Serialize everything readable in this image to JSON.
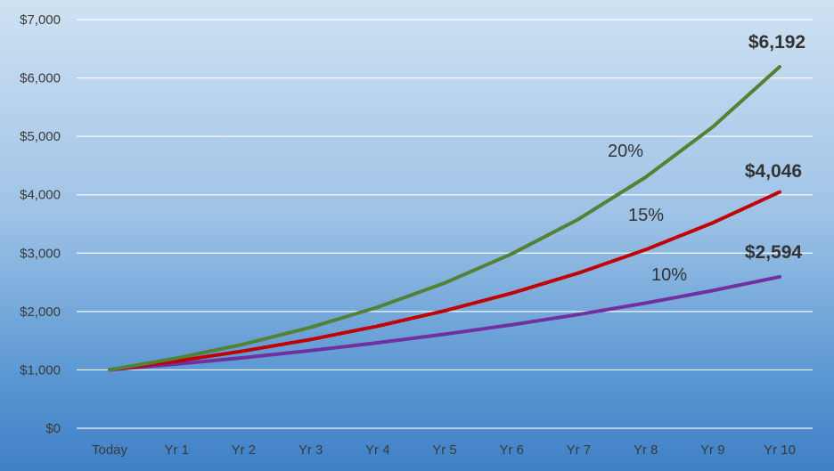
{
  "chart_data": {
    "type": "line",
    "categories": [
      "Today",
      "Yr 1",
      "Yr 2",
      "Yr 3",
      "Yr 4",
      "Yr 5",
      "Yr 6",
      "Yr 7",
      "Yr 8",
      "Yr 9",
      "Yr 10"
    ],
    "ylim": [
      0,
      7000
    ],
    "yticks": [
      "$0",
      "$1,000",
      "$2,000",
      "$3,000",
      "$4,000",
      "$5,000",
      "$6,000",
      "$7,000"
    ],
    "grid": true,
    "legend": "none",
    "series": [
      {
        "name": "20%",
        "color": "#538135",
        "values": [
          1000,
          1200,
          1440,
          1728,
          2074,
          2488,
          2986,
          3583,
          4300,
          5160,
          6192
        ],
        "end_label": "$6,192"
      },
      {
        "name": "15%",
        "color": "#c00000",
        "values": [
          1000,
          1150,
          1323,
          1521,
          1749,
          2011,
          2313,
          2660,
          3059,
          3518,
          4046
        ],
        "end_label": "$4,046"
      },
      {
        "name": "10%",
        "color": "#7030a0",
        "values": [
          1000,
          1100,
          1210,
          1331,
          1464,
          1611,
          1772,
          1949,
          2144,
          2358,
          2594
        ],
        "end_label": "$2,594"
      }
    ]
  }
}
